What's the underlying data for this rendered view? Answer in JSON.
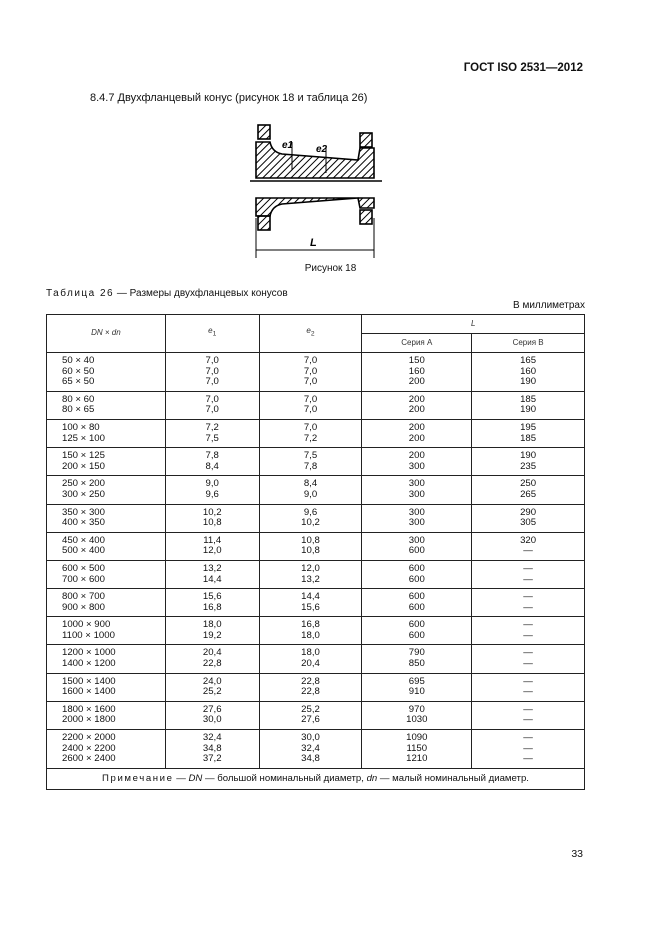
{
  "header": {
    "doc_id": "ГОСТ ISO 2531—2012"
  },
  "section": {
    "title": "8.4.7 Двухфланцевый конус (рисунок 18 и таблица 26)"
  },
  "figure": {
    "caption": "Рисунок 18",
    "labels": {
      "e1": "e1",
      "e2": "e2",
      "L": "L"
    }
  },
  "table": {
    "title_prefix": "Таблица 26",
    "title_rest": " — Размеры двухфланцевых конусов",
    "units": "В миллиметрах",
    "headers": {
      "dn": "DN × dn",
      "e1": "e",
      "e1_sub": "1",
      "e2": "e",
      "e2_sub": "2",
      "L": "L",
      "seriesA": "Серия А",
      "seriesB": "Серия В"
    },
    "groups": [
      [
        [
          "50 × 40",
          "7,0",
          "7,0",
          "150",
          "165"
        ],
        [
          "60 × 50",
          "7,0",
          "7,0",
          "160",
          "160"
        ],
        [
          "65 × 50",
          "7,0",
          "7,0",
          "200",
          "190"
        ]
      ],
      [
        [
          "80 × 60",
          "7,0",
          "7,0",
          "200",
          "185"
        ],
        [
          "80 × 65",
          "7,0",
          "7,0",
          "200",
          "190"
        ]
      ],
      [
        [
          "100 × 80",
          "7,2",
          "7,0",
          "200",
          "195"
        ],
        [
          "125 × 100",
          "7,5",
          "7,2",
          "200",
          "185"
        ]
      ],
      [
        [
          "150 × 125",
          "7,8",
          "7,5",
          "200",
          "190"
        ],
        [
          "200 × 150",
          "8,4",
          "7,8",
          "300",
          "235"
        ]
      ],
      [
        [
          "250 × 200",
          "9,0",
          "8,4",
          "300",
          "250"
        ],
        [
          "300 × 250",
          "9,6",
          "9,0",
          "300",
          "265"
        ]
      ],
      [
        [
          "350 × 300",
          "10,2",
          "9,6",
          "300",
          "290"
        ],
        [
          "400 × 350",
          "10,8",
          "10,2",
          "300",
          "305"
        ]
      ],
      [
        [
          "450 × 400",
          "11,4",
          "10,8",
          "300",
          "320"
        ],
        [
          "500 × 400",
          "12,0",
          "10,8",
          "600",
          "—"
        ]
      ],
      [
        [
          "600 × 500",
          "13,2",
          "12,0",
          "600",
          "—"
        ],
        [
          "700 × 600",
          "14,4",
          "13,2",
          "600",
          "—"
        ]
      ],
      [
        [
          "800 × 700",
          "15,6",
          "14,4",
          "600",
          "—"
        ],
        [
          "900 × 800",
          "16,8",
          "15,6",
          "600",
          "—"
        ]
      ],
      [
        [
          "1000 × 900",
          "18,0",
          "16,8",
          "600",
          "—"
        ],
        [
          "1100 × 1000",
          "19,2",
          "18,0",
          "600",
          "—"
        ]
      ],
      [
        [
          "1200 × 1000",
          "20,4",
          "18,0",
          "790",
          "—"
        ],
        [
          "1400 × 1200",
          "22,8",
          "20,4",
          "850",
          "—"
        ]
      ],
      [
        [
          "1500 × 1400",
          "24,0",
          "22,8",
          "695",
          "—"
        ],
        [
          "1600 × 1400",
          "25,2",
          "22,8",
          "910",
          "—"
        ]
      ],
      [
        [
          "1800 × 1600",
          "27,6",
          "25,2",
          "970",
          "—"
        ],
        [
          "2000 × 1800",
          "30,0",
          "27,6",
          "1030",
          "—"
        ]
      ],
      [
        [
          "2200 × 2000",
          "32,4",
          "30,0",
          "1090",
          "—"
        ],
        [
          "2400 × 2200",
          "34,8",
          "32,4",
          "1150",
          "—"
        ],
        [
          "2600 × 2400",
          "37,2",
          "34,8",
          "1210",
          "—"
        ]
      ]
    ],
    "note": {
      "label": "Примечание",
      "dash1": " — ",
      "dn1": "DN",
      "t1": " — большой номинальный диаметр, ",
      "dn2": "dn",
      "t2": " — малый номинальный диаметр."
    }
  },
  "footer": {
    "page_number": "33"
  }
}
